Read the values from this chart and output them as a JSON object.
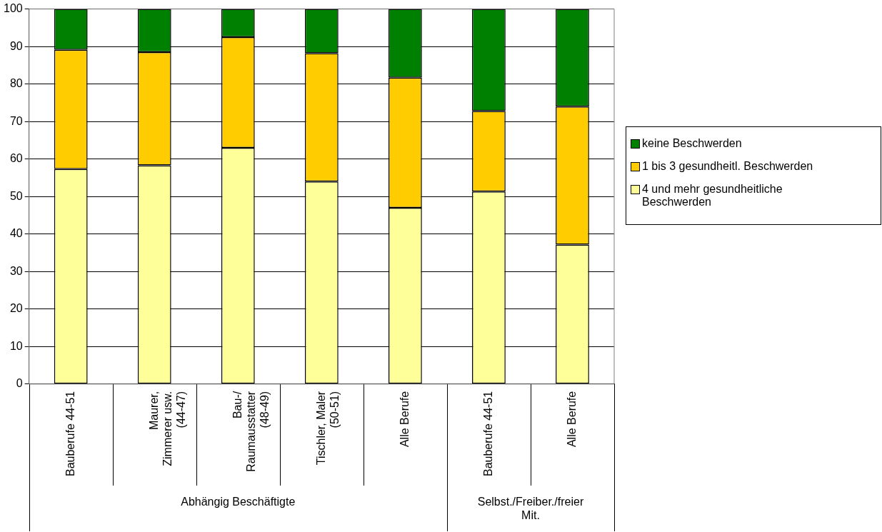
{
  "chart_data": {
    "type": "bar",
    "stacked": true,
    "categories": [
      "Bauberufe 44-51",
      "Maurer, Zimmerer usw. (44-47)",
      "Bau-/Raumausstatter (48-49)",
      "Tischler, Maler (50-51)",
      "Alle Berufe",
      "Bauberufe 44-51",
      "Alle Berufe"
    ],
    "series": [
      {
        "name": "4 und mehr gesundheitliche Beschwerden",
        "color": "#ffff99",
        "values": [
          57.3,
          58.3,
          63,
          54,
          47,
          51.3,
          37.2
        ]
      },
      {
        "name": "1 bis 3 gesundheitl. Beschwerden",
        "color": "#ffcc00",
        "values": [
          31.8,
          30.2,
          29.5,
          34.2,
          34.7,
          21.5,
          36.8
        ]
      },
      {
        "name": "keine Beschwerden",
        "color": "#008000",
        "values": [
          10.9,
          11.5,
          7.5,
          11.8,
          18.3,
          27.2,
          26
        ]
      }
    ],
    "annotations": [
      "Abhängig Beschäftigte",
      "Selbst./Freiber./freier Mit."
    ],
    "ylim": [
      0,
      100
    ],
    "yticks": [
      0,
      10,
      20,
      30,
      40,
      50,
      60,
      70,
      80,
      90,
      100
    ],
    "grid": "y",
    "legend": "right"
  }
}
